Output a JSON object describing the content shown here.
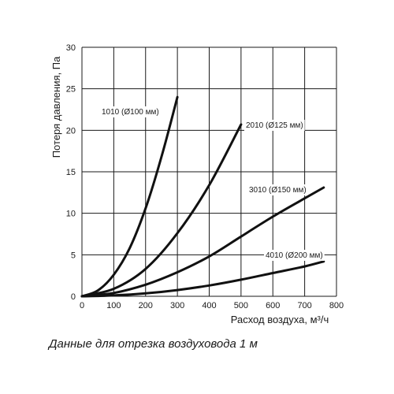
{
  "chart_data": {
    "type": "line",
    "xlabel": "Расход воздуха, м³/ч",
    "ylabel": "Потеря давления, Па",
    "xlim": [
      0,
      800
    ],
    "ylim": [
      0,
      30
    ],
    "x_ticks": [
      "0",
      "100",
      "200",
      "300",
      "400",
      "500",
      "600",
      "700",
      "800"
    ],
    "y_ticks": [
      "0",
      "5",
      "10",
      "15",
      "20",
      "25",
      "30"
    ],
    "grid": true,
    "series": [
      {
        "name": "1010 (Ø100 мм)",
        "points": [
          [
            0,
            0
          ],
          [
            50,
            0.7
          ],
          [
            100,
            2.6
          ],
          [
            150,
            5.8
          ],
          [
            200,
            10.6
          ],
          [
            250,
            16.8
          ],
          [
            300,
            24.0
          ]
        ]
      },
      {
        "name": "2010 (Ø125 мм)",
        "points": [
          [
            0,
            0
          ],
          [
            100,
            0.9
          ],
          [
            200,
            3.3
          ],
          [
            300,
            7.6
          ],
          [
            400,
            13.4
          ],
          [
            500,
            20.7
          ]
        ]
      },
      {
        "name": "3010 (Ø150 мм)",
        "points": [
          [
            0,
            0
          ],
          [
            100,
            0.4
          ],
          [
            200,
            1.4
          ],
          [
            300,
            2.9
          ],
          [
            400,
            4.8
          ],
          [
            500,
            7.2
          ],
          [
            600,
            9.6
          ],
          [
            700,
            11.8
          ],
          [
            760,
            13.1
          ]
        ]
      },
      {
        "name": "4010 (Ø200 мм)",
        "points": [
          [
            0,
            0
          ],
          [
            100,
            0.1
          ],
          [
            200,
            0.35
          ],
          [
            300,
            0.75
          ],
          [
            400,
            1.3
          ],
          [
            500,
            2.0
          ],
          [
            600,
            2.8
          ],
          [
            700,
            3.6
          ],
          [
            760,
            4.2
          ]
        ]
      }
    ]
  },
  "caption": "Данные для отрезка воздуховода 1 м"
}
